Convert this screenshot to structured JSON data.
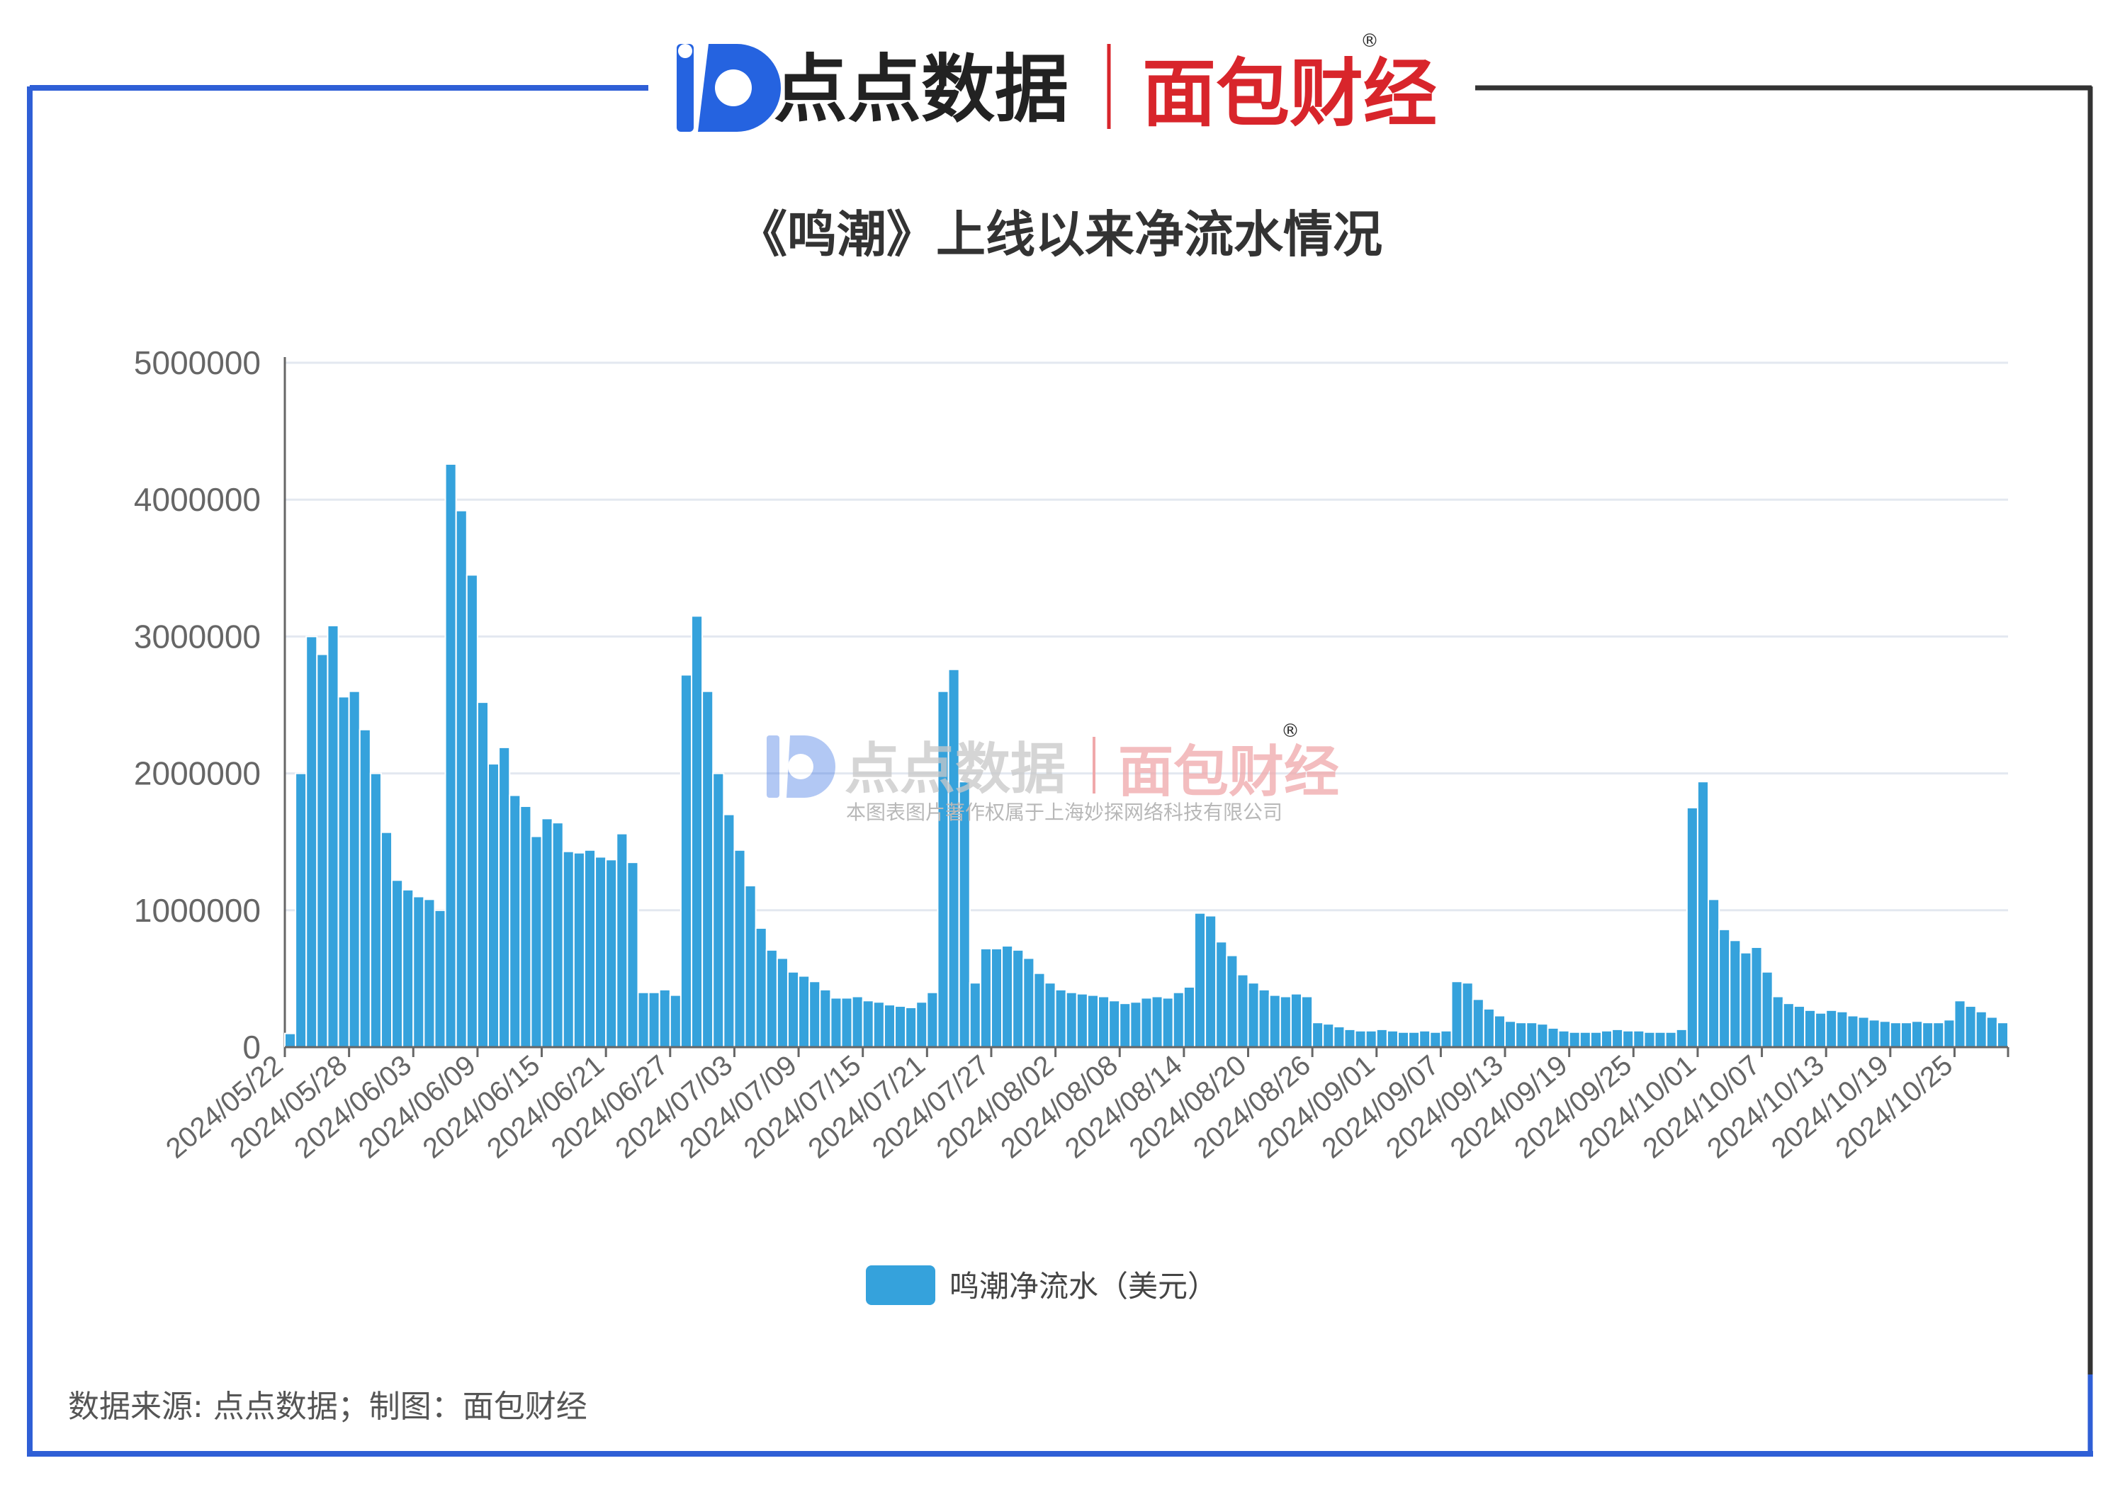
{
  "header": {
    "brand_left": "点点数据",
    "brand_right": "面包财经",
    "registered_mark": "®"
  },
  "watermark": {
    "brand_left": "点点数据",
    "brand_right": "面包财经",
    "registered_mark": "®",
    "copyright": "本图表图片著作权属于上海妙探网络科技有限公司"
  },
  "footer": {
    "source": "数据来源: 点点数据；制图：面包财经"
  },
  "colors": {
    "bar": "#35a2dc",
    "frame_left": "#2f5fd6",
    "frame_right": "#333333",
    "brand_red": "#d8252b"
  },
  "chart_data": {
    "type": "bar",
    "title": "《鸣潮》上线以来净流水情况",
    "xlabel": "",
    "ylabel": "",
    "ylim": [
      0,
      5000000
    ],
    "yticks": [
      0,
      1000000,
      2000000,
      3000000,
      4000000,
      5000000
    ],
    "ytick_labels": [
      "0",
      "1000000",
      "2000000",
      "3000000",
      "4000000",
      "5000000"
    ],
    "grid": true,
    "legend_position": "bottom-center",
    "start_date": "2024/05/22",
    "x_tick_labels": [
      "2024/05/22",
      "2024/05/28",
      "2024/06/03",
      "2024/06/09",
      "2024/06/15",
      "2024/06/21",
      "2024/06/27",
      "2024/07/03",
      "2024/07/09",
      "2024/07/15",
      "2024/07/21",
      "2024/07/27",
      "2024/08/02",
      "2024/08/08",
      "2024/08/14",
      "2024/08/20",
      "2024/08/26",
      "2024/09/01",
      "2024/09/07",
      "2024/09/13",
      "2024/09/19",
      "2024/09/25",
      "2024/10/01",
      "2024/10/07",
      "2024/10/13",
      "2024/10/19",
      "2024/10/25"
    ],
    "series": [
      {
        "name": "鸣潮净流水（美元）",
        "values": [
          100000,
          2000000,
          3000000,
          2870000,
          3080000,
          2560000,
          2600000,
          2320000,
          2000000,
          1570000,
          1220000,
          1150000,
          1100000,
          1080000,
          1000000,
          4260000,
          3920000,
          3450000,
          2520000,
          2070000,
          2190000,
          1840000,
          1760000,
          1540000,
          1670000,
          1640000,
          1430000,
          1420000,
          1440000,
          1390000,
          1370000,
          1560000,
          1350000,
          400000,
          400000,
          420000,
          380000,
          2720000,
          3150000,
          2600000,
          2000000,
          1700000,
          1440000,
          1180000,
          870000,
          710000,
          650000,
          550000,
          520000,
          480000,
          420000,
          360000,
          360000,
          370000,
          340000,
          330000,
          310000,
          300000,
          290000,
          330000,
          400000,
          2600000,
          2760000,
          1940000,
          470000,
          720000,
          720000,
          740000,
          710000,
          650000,
          540000,
          470000,
          420000,
          400000,
          390000,
          380000,
          370000,
          340000,
          320000,
          330000,
          360000,
          370000,
          360000,
          400000,
          440000,
          980000,
          960000,
          770000,
          670000,
          530000,
          470000,
          420000,
          380000,
          370000,
          390000,
          370000,
          180000,
          170000,
          150000,
          130000,
          120000,
          120000,
          130000,
          120000,
          110000,
          110000,
          120000,
          110000,
          120000,
          480000,
          470000,
          350000,
          280000,
          230000,
          190000,
          180000,
          180000,
          170000,
          140000,
          120000,
          110000,
          110000,
          110000,
          120000,
          130000,
          120000,
          120000,
          110000,
          110000,
          110000,
          130000,
          1750000,
          1940000,
          1080000,
          860000,
          780000,
          690000,
          730000,
          550000,
          370000,
          320000,
          300000,
          270000,
          250000,
          270000,
          260000,
          230000,
          220000,
          200000,
          190000,
          180000,
          180000,
          190000,
          180000,
          180000,
          200000,
          340000,
          300000,
          260000,
          220000,
          180000
        ]
      }
    ]
  }
}
